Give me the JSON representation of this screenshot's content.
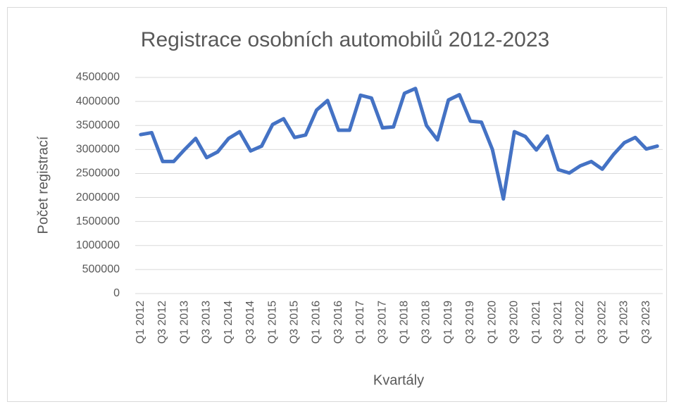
{
  "chart_data": {
    "type": "line",
    "title": "Registrace osobních automobilů 2012-2023",
    "y_label": "Počet registrací",
    "x_label": "Kvartály",
    "categories": [
      "Q1 2012",
      null,
      "Q3 2012",
      null,
      "Q1 2013",
      null,
      "Q3 2013",
      null,
      "Q1 2014",
      null,
      "Q3 2014",
      null,
      "Q1 2015",
      null,
      "Q3 2015",
      null,
      "Q1 2016",
      null,
      "Q3 2016",
      null,
      "Q1 2017",
      null,
      "Q3 2017",
      null,
      "Q1 2018",
      null,
      "Q3 2018",
      null,
      "Q1 2019",
      null,
      "Q3 2019",
      null,
      "Q1 2020",
      null,
      "Q3 2020",
      null,
      "Q1 2021",
      null,
      "Q3 2021",
      null,
      "Q1 2022",
      null,
      "Q3 2022",
      null,
      "Q1 2023",
      null,
      "Q3 2023",
      null
    ],
    "values": [
      3310000,
      3350000,
      2750000,
      2750000,
      3000000,
      3230000,
      2830000,
      2950000,
      3230000,
      3370000,
      2970000,
      3070000,
      3520000,
      3640000,
      3250000,
      3300000,
      3820000,
      4020000,
      3400000,
      3400000,
      4130000,
      4070000,
      3450000,
      3470000,
      4170000,
      4270000,
      3500000,
      3200000,
      4030000,
      4140000,
      3590000,
      3570000,
      3000000,
      1970000,
      3370000,
      3270000,
      2990000,
      3280000,
      2580000,
      2510000,
      2660000,
      2750000,
      2590000,
      2890000,
      3140000,
      3250000,
      3010000,
      3070000
    ],
    "color": "#4472c4",
    "ylim": [
      0,
      4500000
    ],
    "yticks": [
      0,
      500000,
      1000000,
      1500000,
      2000000,
      2500000,
      3000000,
      3500000,
      4000000,
      4500000
    ],
    "grid": true
  }
}
